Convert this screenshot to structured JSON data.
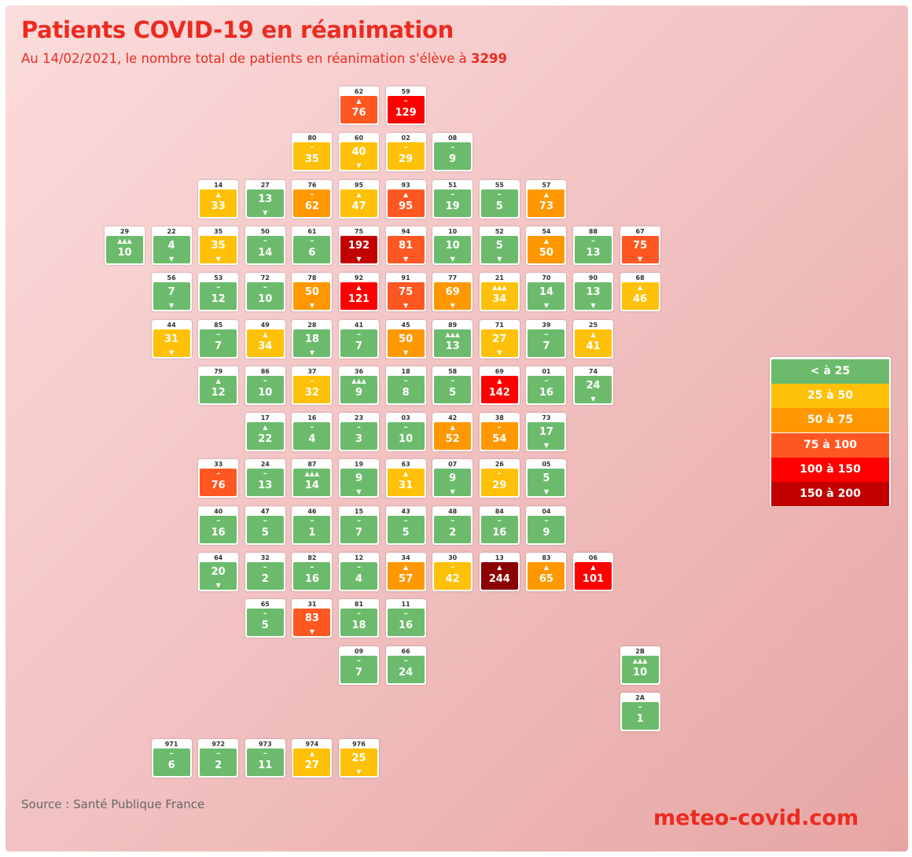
{
  "title": "Patients COVID-19 en réanimation",
  "subtitle": {
    "prefix": "Au 14/02/2021, le nombre total de patients en réanimation s'élève à ",
    "total": "3299"
  },
  "legend": [
    {
      "label": "< à 25",
      "color": "#6cbb6c"
    },
    {
      "label": "25 à 50",
      "color": "#ffc107"
    },
    {
      "label": "50 à 75",
      "color": "#ff9800"
    },
    {
      "label": "75 à 100",
      "color": "#ff5722"
    },
    {
      "label": "100 à 150",
      "color": "#ff0000"
    },
    {
      "label": "150 à 200",
      "color": "#c20000"
    }
  ],
  "extra_color": "#8b0000",
  "departments": [
    {
      "code": "62",
      "value": 76,
      "trend": "up"
    },
    {
      "code": "59",
      "value": 129,
      "trend": "stable"
    },
    {
      "code": "80",
      "value": 35,
      "trend": "stable"
    },
    {
      "code": "60",
      "value": 40,
      "trend": "down"
    },
    {
      "code": "02",
      "value": 29,
      "trend": "stable"
    },
    {
      "code": "08",
      "value": 9,
      "trend": "stable"
    },
    {
      "code": "14",
      "value": 33,
      "trend": "up"
    },
    {
      "code": "27",
      "value": 13,
      "trend": "down"
    },
    {
      "code": "76",
      "value": 62,
      "trend": "stable"
    },
    {
      "code": "95",
      "value": 47,
      "trend": "up"
    },
    {
      "code": "93",
      "value": 95,
      "trend": "up"
    },
    {
      "code": "51",
      "value": 19,
      "trend": "stable"
    },
    {
      "code": "55",
      "value": 5,
      "trend": "stable"
    },
    {
      "code": "57",
      "value": 73,
      "trend": "up"
    },
    {
      "code": "29",
      "value": 10,
      "trend": "up3"
    },
    {
      "code": "22",
      "value": 4,
      "trend": "down"
    },
    {
      "code": "35",
      "value": 35,
      "trend": "down"
    },
    {
      "code": "50",
      "value": 14,
      "trend": "stable"
    },
    {
      "code": "61",
      "value": 6,
      "trend": "stable"
    },
    {
      "code": "75",
      "value": 192,
      "trend": "down"
    },
    {
      "code": "94",
      "value": 81,
      "trend": "down"
    },
    {
      "code": "10",
      "value": 10,
      "trend": "down"
    },
    {
      "code": "52",
      "value": 5,
      "trend": "down"
    },
    {
      "code": "54",
      "value": 50,
      "trend": "up"
    },
    {
      "code": "88",
      "value": 13,
      "trend": "stable"
    },
    {
      "code": "67",
      "value": 75,
      "trend": "down"
    },
    {
      "code": "56",
      "value": 7,
      "trend": "down"
    },
    {
      "code": "53",
      "value": 12,
      "trend": "stable"
    },
    {
      "code": "72",
      "value": 10,
      "trend": "stable"
    },
    {
      "code": "78",
      "value": 50,
      "trend": "down"
    },
    {
      "code": "92",
      "value": 121,
      "trend": "up"
    },
    {
      "code": "91",
      "value": 75,
      "trend": "down"
    },
    {
      "code": "77",
      "value": 69,
      "trend": "down"
    },
    {
      "code": "21",
      "value": 34,
      "trend": "up3"
    },
    {
      "code": "70",
      "value": 14,
      "trend": "down"
    },
    {
      "code": "90",
      "value": 13,
      "trend": "down"
    },
    {
      "code": "68",
      "value": 46,
      "trend": "up"
    },
    {
      "code": "44",
      "value": 31,
      "trend": "down"
    },
    {
      "code": "85",
      "value": 7,
      "trend": "stable"
    },
    {
      "code": "49",
      "value": 34,
      "trend": "up"
    },
    {
      "code": "28",
      "value": 18,
      "trend": "down"
    },
    {
      "code": "41",
      "value": 7,
      "trend": "stable"
    },
    {
      "code": "45",
      "value": 50,
      "trend": "down"
    },
    {
      "code": "89",
      "value": 13,
      "trend": "up3"
    },
    {
      "code": "71",
      "value": 27,
      "trend": "down"
    },
    {
      "code": "39",
      "value": 7,
      "trend": "stable"
    },
    {
      "code": "25",
      "value": 41,
      "trend": "up"
    },
    {
      "code": "79",
      "value": 12,
      "trend": "up"
    },
    {
      "code": "86",
      "value": 10,
      "trend": "stable"
    },
    {
      "code": "37",
      "value": 32,
      "trend": "stable"
    },
    {
      "code": "36",
      "value": 9,
      "trend": "up3"
    },
    {
      "code": "18",
      "value": 8,
      "trend": "stable"
    },
    {
      "code": "58",
      "value": 5,
      "trend": "stable"
    },
    {
      "code": "69",
      "value": 142,
      "trend": "up"
    },
    {
      "code": "01",
      "value": 16,
      "trend": "stable"
    },
    {
      "code": "74",
      "value": 24,
      "trend": "down"
    },
    {
      "code": "17",
      "value": 22,
      "trend": "up"
    },
    {
      "code": "16",
      "value": 4,
      "trend": "stable"
    },
    {
      "code": "23",
      "value": 3,
      "trend": "stable"
    },
    {
      "code": "03",
      "value": 10,
      "trend": "stable"
    },
    {
      "code": "42",
      "value": 52,
      "trend": "up"
    },
    {
      "code": "38",
      "value": 54,
      "trend": "stable"
    },
    {
      "code": "73",
      "value": 17,
      "trend": "down"
    },
    {
      "code": "33",
      "value": 76,
      "trend": "stable"
    },
    {
      "code": "24",
      "value": 13,
      "trend": "stable"
    },
    {
      "code": "87",
      "value": 14,
      "trend": "up3"
    },
    {
      "code": "19",
      "value": 9,
      "trend": "down"
    },
    {
      "code": "63",
      "value": 31,
      "trend": "up"
    },
    {
      "code": "07",
      "value": 9,
      "trend": "down"
    },
    {
      "code": "26",
      "value": 29,
      "trend": "stable"
    },
    {
      "code": "05",
      "value": 5,
      "trend": "down"
    },
    {
      "code": "40",
      "value": 16,
      "trend": "stable"
    },
    {
      "code": "47",
      "value": 5,
      "trend": "stable"
    },
    {
      "code": "46",
      "value": 1,
      "trend": "stable"
    },
    {
      "code": "15",
      "value": 7,
      "trend": "stable"
    },
    {
      "code": "43",
      "value": 5,
      "trend": "stable"
    },
    {
      "code": "48",
      "value": 2,
      "trend": "stable"
    },
    {
      "code": "84",
      "value": 16,
      "trend": "stable"
    },
    {
      "code": "04",
      "value": 9,
      "trend": "stable"
    },
    {
      "code": "64",
      "value": 20,
      "trend": "down"
    },
    {
      "code": "32",
      "value": 2,
      "trend": "stable"
    },
    {
      "code": "82",
      "value": 16,
      "trend": "stable"
    },
    {
      "code": "12",
      "value": 4,
      "trend": "stable"
    },
    {
      "code": "34",
      "value": 57,
      "trend": "up"
    },
    {
      "code": "30",
      "value": 42,
      "trend": "stable"
    },
    {
      "code": "13",
      "value": 244,
      "trend": "up"
    },
    {
      "code": "83",
      "value": 65,
      "trend": "up"
    },
    {
      "code": "06",
      "value": 101,
      "trend": "up"
    },
    {
      "code": "65",
      "value": 5,
      "trend": "stable"
    },
    {
      "code": "31",
      "value": 83,
      "trend": "down"
    },
    {
      "code": "81",
      "value": 18,
      "trend": "stable"
    },
    {
      "code": "11",
      "value": 16,
      "trend": "stable"
    },
    {
      "code": "09",
      "value": 7,
      "trend": "stable"
    },
    {
      "code": "66",
      "value": 24,
      "trend": "stable"
    },
    {
      "code": "2B",
      "value": 10,
      "trend": "up3"
    },
    {
      "code": "2A",
      "value": 1,
      "trend": "stable"
    },
    {
      "code": "971",
      "value": 6,
      "trend": "stable"
    },
    {
      "code": "972",
      "value": 2,
      "trend": "stable"
    },
    {
      "code": "973",
      "value": 11,
      "trend": "stable"
    },
    {
      "code": "974",
      "value": 27,
      "trend": "up"
    },
    {
      "code": "976",
      "value": 25,
      "trend": "down"
    }
  ],
  "source": "Source : Santé Publique France",
  "brand": "meteo-covid.com"
}
